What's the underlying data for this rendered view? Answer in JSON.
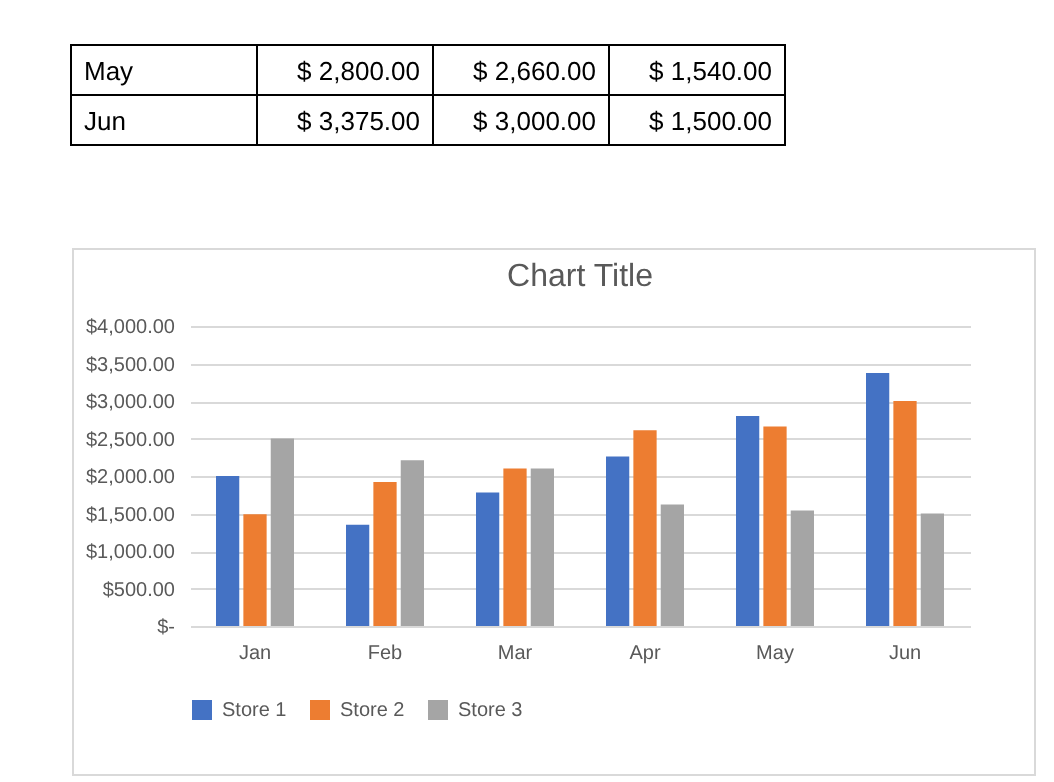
{
  "chart_data": {
    "type": "bar",
    "title": "Chart Title",
    "categories": [
      "Jan",
      "Feb",
      "Mar",
      "Apr",
      "May",
      "Jun"
    ],
    "series": [
      {
        "name": "Store 1",
        "color": "#4472c4",
        "values": [
          2000,
          1350,
          1780,
          2260,
          2800,
          3375
        ]
      },
      {
        "name": "Store 2",
        "color": "#ed7d31",
        "values": [
          1490,
          1920,
          2100,
          2610,
          2660,
          3000
        ]
      },
      {
        "name": "Store 3",
        "color": "#a5a5a5",
        "values": [
          2500,
          2210,
          2100,
          1620,
          1540,
          1500
        ]
      }
    ],
    "annotations": [
      "May",
      "$ 2,800.00",
      "$ 2,660.00",
      "$ 1,540.00",
      "Jun",
      "$ 3,375.00",
      "$ 3,000.00",
      "$ 1,500.00"
    ],
    "ylim": [
      0,
      4000
    ],
    "yticks": [
      {
        "value": 0,
        "label": "$-"
      },
      {
        "value": 500,
        "label": "$500.00"
      },
      {
        "value": 1000,
        "label": "$1,000.00"
      },
      {
        "value": 1500,
        "label": "$1,500.00"
      },
      {
        "value": 2000,
        "label": "$2,000.00"
      },
      {
        "value": 2500,
        "label": "$2,500.00"
      },
      {
        "value": 3000,
        "label": "$3,000.00"
      },
      {
        "value": 3500,
        "label": "$3,500.00"
      },
      {
        "value": 4000,
        "label": "$4,000.00"
      }
    ],
    "grid": "y",
    "legend": "bottom"
  }
}
